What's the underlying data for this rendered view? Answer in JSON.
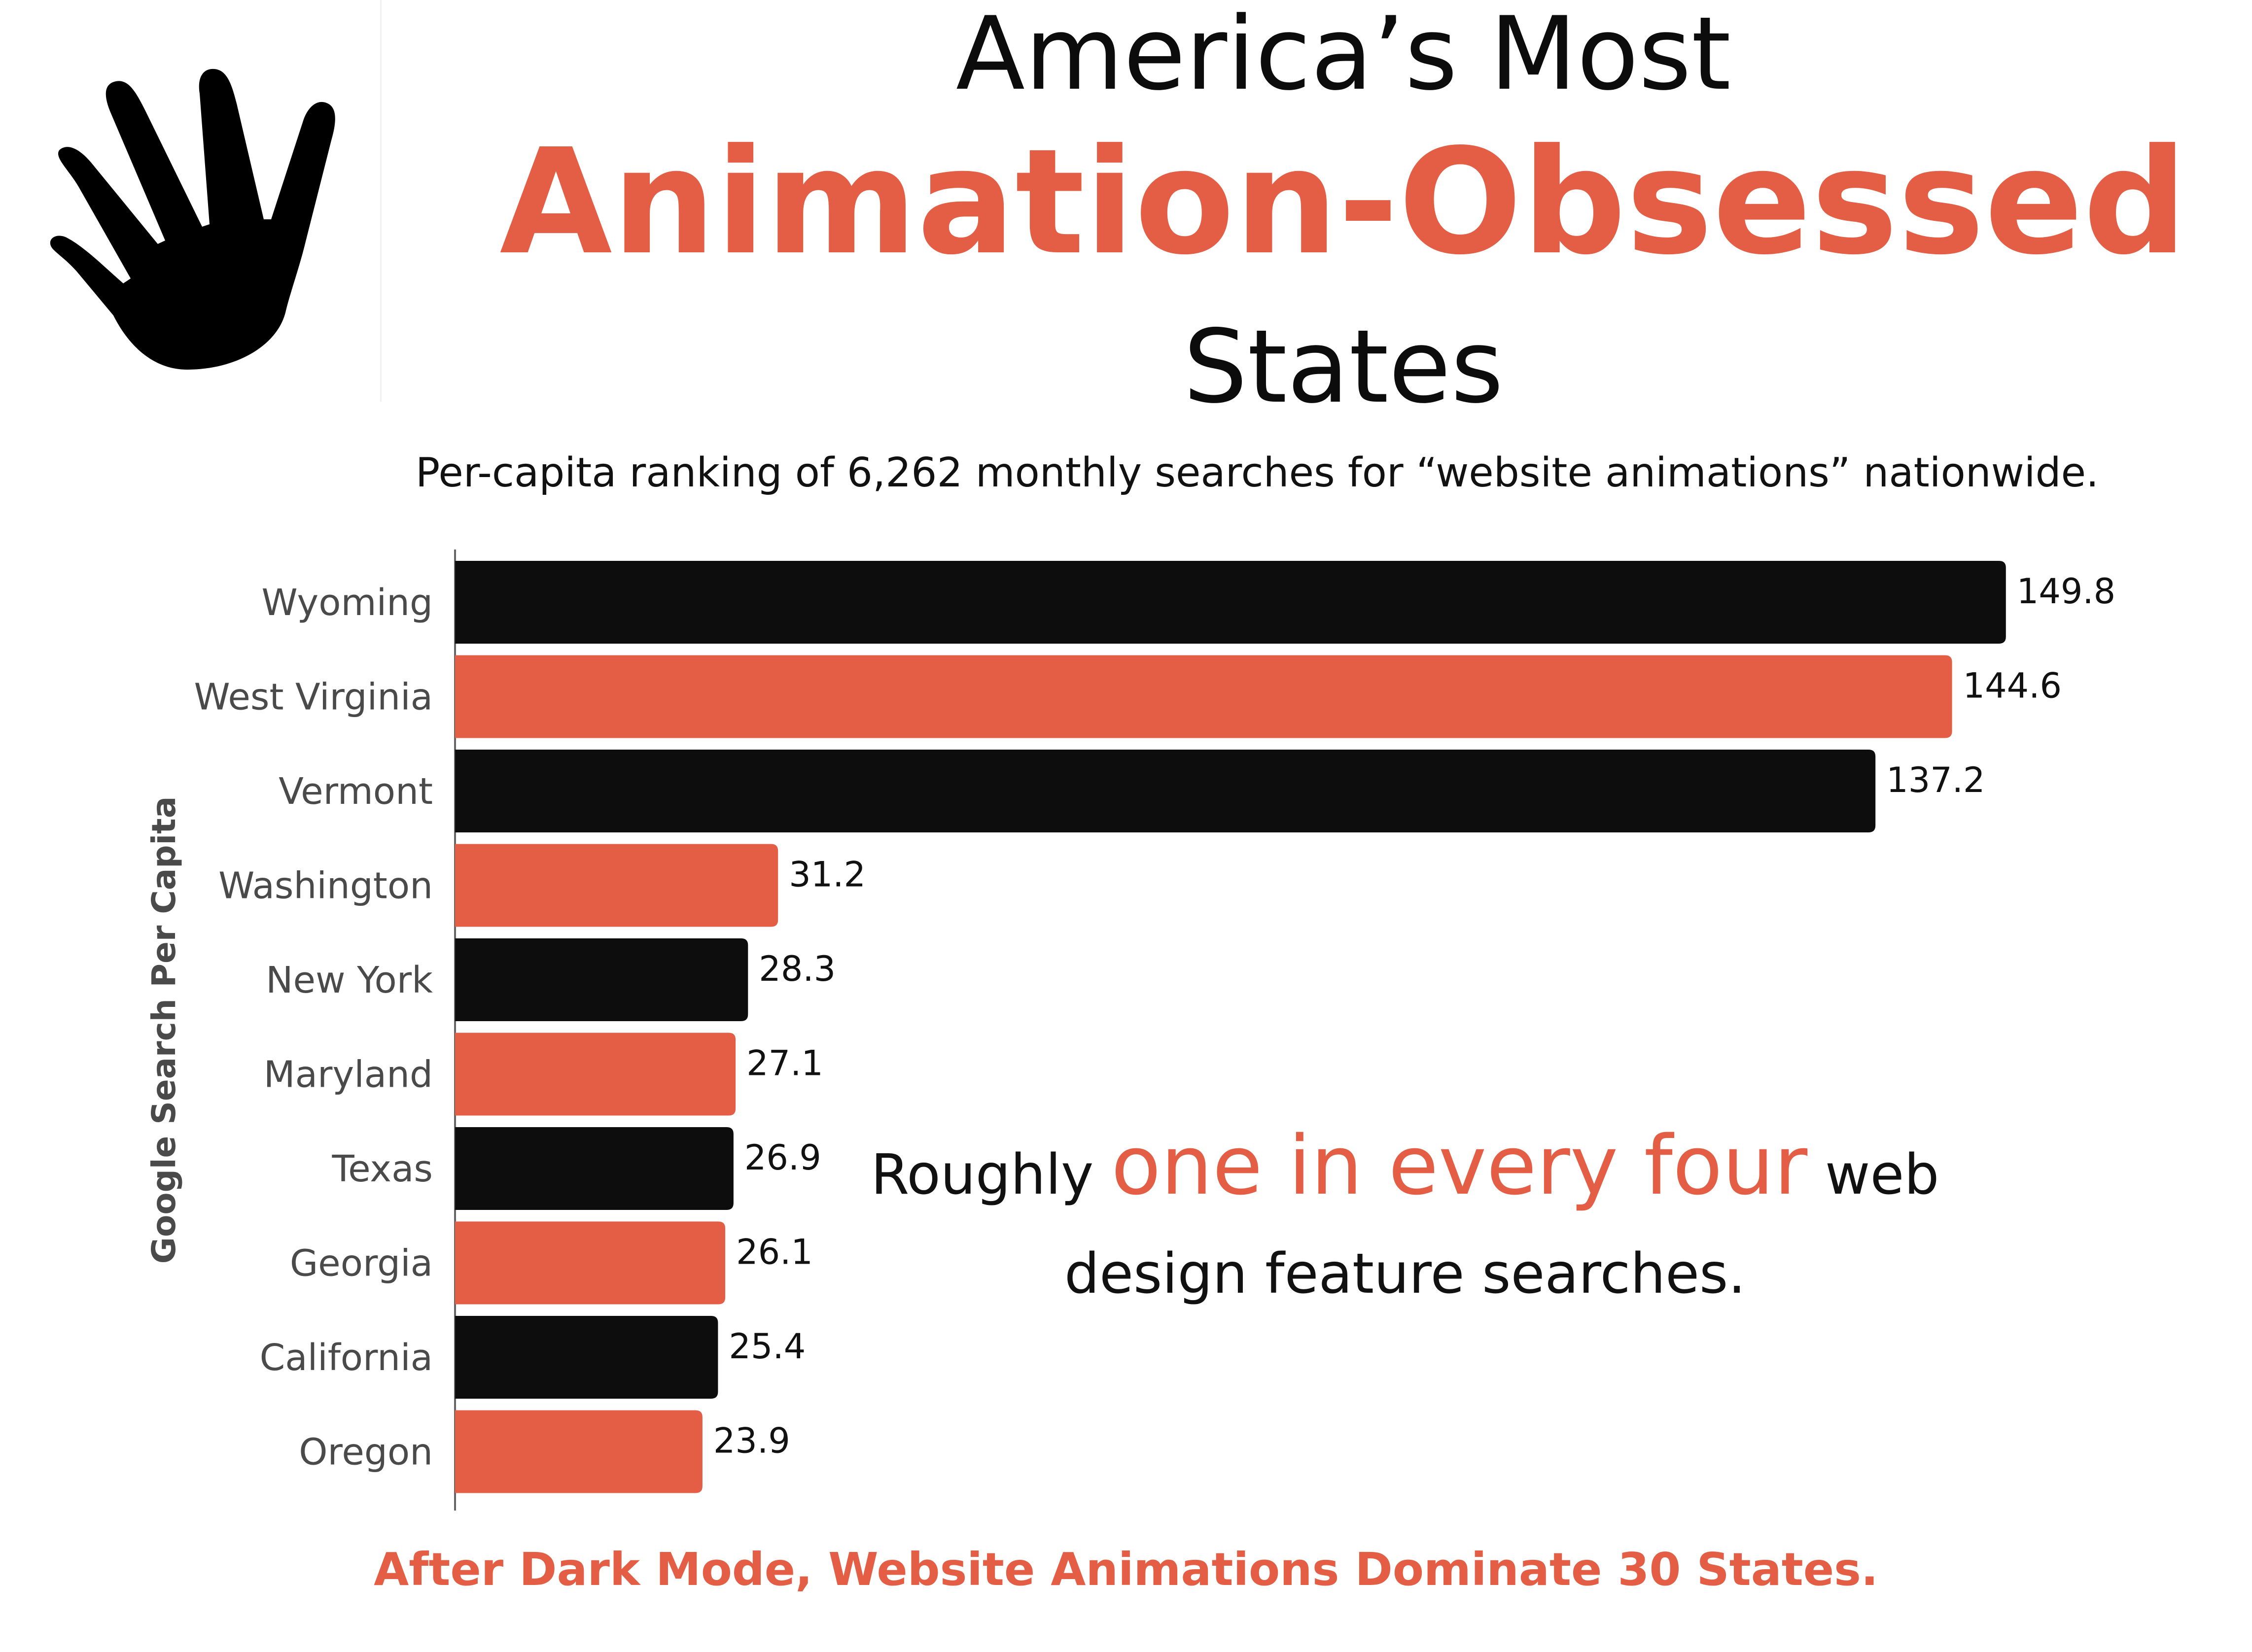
{
  "header": {
    "title_top": "America’s Most",
    "title_main": "Animation-Obsessed",
    "title_bottom": "States",
    "subtitle": "Per-capita ranking of 6,262 monthly searches for “website animations” nationwide."
  },
  "logo": {
    "icon": "hand-icon"
  },
  "colors": {
    "accent": "#e35e44",
    "dark": "#0d0d0d",
    "text": "#111111",
    "label": "#4a4a4a"
  },
  "chart_data": {
    "type": "bar",
    "orientation": "horizontal",
    "title": "America’s Most Animation-Obsessed States",
    "ylabel": "Google Search Per Capita",
    "xlabel": "",
    "categories": [
      "Wyoming",
      "West Virginia",
      "Vermont",
      "Washington",
      "New York",
      "Maryland",
      "Texas",
      "Georgia",
      "California",
      "Oregon"
    ],
    "values": [
      149.8,
      144.6,
      137.2,
      31.2,
      28.3,
      27.1,
      26.9,
      26.1,
      25.4,
      23.9
    ],
    "value_labels": [
      "149.8",
      "144.6",
      "137.2",
      "31.2",
      "28.3",
      "27.1",
      "26.9",
      "26.1",
      "25.4",
      "23.9"
    ],
    "xlim": [
      0,
      150
    ],
    "bar_colors": [
      "#0d0d0d",
      "#e35e44",
      "#0d0d0d",
      "#e35e44",
      "#0d0d0d",
      "#e35e44",
      "#0d0d0d",
      "#e35e44",
      "#0d0d0d",
      "#e35e44"
    ],
    "grid": false,
    "legend": "none"
  },
  "callout": {
    "prefix": "Roughly",
    "highlight": "one in every four",
    "suffix": "web",
    "line2": "design feature searches."
  },
  "footer": {
    "text": "After Dark Mode, Website Animations Dominate 30 States."
  }
}
